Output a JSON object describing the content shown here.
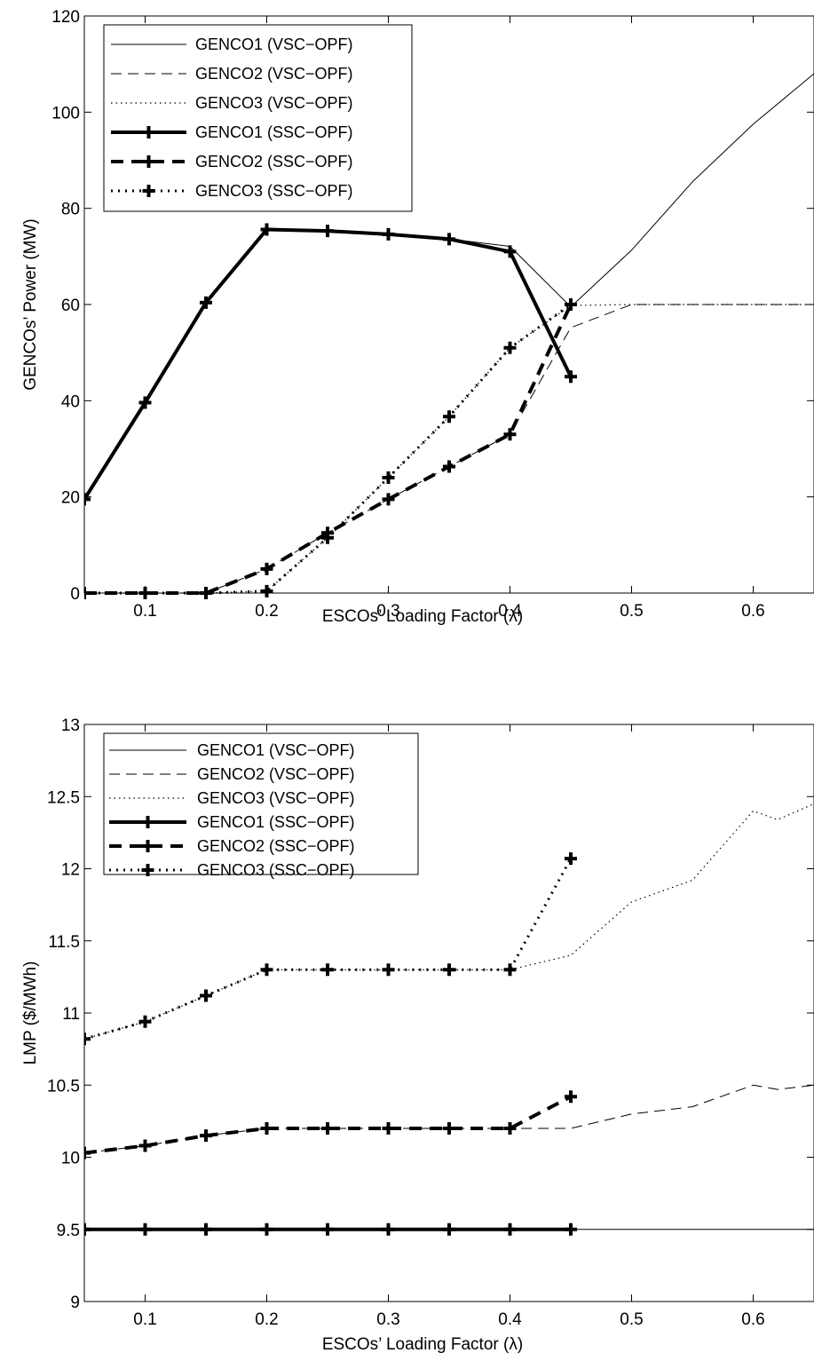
{
  "chart_data": [
    {
      "type": "line",
      "title": "",
      "xlabel": "ESCOs’ Loading Factor (λ)",
      "ylabel": "GENCOs’ Power (MW)",
      "xlim": [
        0.05,
        0.65
      ],
      "ylim": [
        0,
        120
      ],
      "xticks": [
        0.1,
        0.2,
        0.3,
        0.4,
        0.5,
        0.6
      ],
      "yticks": [
        0,
        20,
        40,
        60,
        80,
        100,
        120
      ],
      "xtick_labels": [
        "0.1",
        "0.2",
        "0.3",
        "0.4",
        "0.5",
        "0.6"
      ],
      "ytick_labels": [
        "0",
        "20",
        "40",
        "60",
        "80",
        "100",
        "120"
      ],
      "grid": false,
      "legend_position": "top-left",
      "series": [
        {
          "name": "GENCO1 (VSC−OPF)",
          "style": "thin-solid",
          "x": [
            0.05,
            0.1,
            0.15,
            0.2,
            0.25,
            0.3,
            0.35,
            0.4,
            0.45,
            0.5,
            0.55,
            0.6,
            0.65
          ],
          "y": [
            19.5,
            39.6,
            60.4,
            75.6,
            75.3,
            74.6,
            73.6,
            72.1,
            59.5,
            71.3,
            85.5,
            97.5,
            108
          ]
        },
        {
          "name": "GENCO2 (VSC−OPF)",
          "style": "thin-dashed",
          "x": [
            0.05,
            0.1,
            0.15,
            0.2,
            0.25,
            0.3,
            0.35,
            0.4,
            0.45,
            0.5,
            0.55,
            0.6,
            0.65
          ],
          "y": [
            0,
            0,
            0,
            5,
            12.5,
            19.5,
            26.3,
            33,
            55.2,
            60,
            60,
            60,
            60
          ]
        },
        {
          "name": "GENCO3 (VSC−OPF)",
          "style": "thin-dotted",
          "x": [
            0.05,
            0.1,
            0.15,
            0.2,
            0.25,
            0.3,
            0.35,
            0.4,
            0.45,
            0.5,
            0.55,
            0.6,
            0.65
          ],
          "y": [
            0,
            0,
            0,
            0.4,
            11.5,
            24,
            36.7,
            51,
            59.8,
            60,
            60,
            60,
            60
          ]
        },
        {
          "name": "GENCO1 (SSC−OPF)",
          "style": "thick-solid",
          "x": [
            0.05,
            0.1,
            0.15,
            0.2,
            0.25,
            0.3,
            0.35,
            0.4,
            0.45
          ],
          "y": [
            19.5,
            39.6,
            60.4,
            75.6,
            75.3,
            74.6,
            73.6,
            71,
            45
          ]
        },
        {
          "name": "GENCO2 (SSC−OPF)",
          "style": "thick-dashed",
          "x": [
            0.05,
            0.1,
            0.15,
            0.2,
            0.25,
            0.3,
            0.35,
            0.4,
            0.45
          ],
          "y": [
            0,
            0,
            0,
            5,
            12.5,
            19.5,
            26.3,
            33,
            60
          ]
        },
        {
          "name": "GENCO3 (SSC−OPF)",
          "style": "thick-dotted",
          "x": [
            0.05,
            0.1,
            0.15,
            0.2,
            0.25,
            0.3,
            0.35,
            0.4,
            0.45
          ],
          "y": [
            0,
            0,
            0,
            0.4,
            11.5,
            24,
            36.7,
            51,
            60
          ]
        }
      ]
    },
    {
      "type": "line",
      "title": "",
      "xlabel": "ESCOs’ Loading Factor (λ)",
      "ylabel": "LMP ($/MWh)",
      "xlim": [
        0.05,
        0.65
      ],
      "ylim": [
        9,
        13
      ],
      "xticks": [
        0.1,
        0.2,
        0.3,
        0.4,
        0.5,
        0.6
      ],
      "yticks": [
        9,
        9.5,
        10,
        10.5,
        11,
        11.5,
        12,
        12.5,
        13
      ],
      "xtick_labels": [
        "0.1",
        "0.2",
        "0.3",
        "0.4",
        "0.5",
        "0.6"
      ],
      "ytick_labels": [
        "9",
        "9.5",
        "10",
        "10.5",
        "11",
        "11.5",
        "12",
        "12.5",
        "13"
      ],
      "grid": false,
      "legend_position": "top-left",
      "series": [
        {
          "name": "GENCO1 (VSC−OPF)",
          "style": "thin-solid",
          "x": [
            0.05,
            0.1,
            0.15,
            0.2,
            0.25,
            0.3,
            0.35,
            0.4,
            0.45,
            0.5,
            0.55,
            0.6,
            0.65
          ],
          "y": [
            9.5,
            9.5,
            9.5,
            9.5,
            9.5,
            9.5,
            9.5,
            9.5,
            9.5,
            9.5,
            9.5,
            9.5,
            9.5
          ]
        },
        {
          "name": "GENCO2 (VSC−OPF)",
          "style": "thin-dashed",
          "x": [
            0.05,
            0.1,
            0.15,
            0.2,
            0.25,
            0.3,
            0.35,
            0.4,
            0.45,
            0.5,
            0.55,
            0.6,
            0.62,
            0.65
          ],
          "y": [
            10.03,
            10.08,
            10.15,
            10.2,
            10.2,
            10.2,
            10.2,
            10.2,
            10.2,
            10.3,
            10.35,
            10.5,
            10.47,
            10.5
          ]
        },
        {
          "name": "GENCO3 (VSC−OPF)",
          "style": "thin-dotted",
          "x": [
            0.05,
            0.1,
            0.15,
            0.2,
            0.25,
            0.3,
            0.35,
            0.4,
            0.45,
            0.5,
            0.55,
            0.6,
            0.62,
            0.65
          ],
          "y": [
            10.82,
            10.94,
            11.12,
            11.3,
            11.3,
            11.3,
            11.3,
            11.3,
            11.4,
            11.77,
            11.92,
            12.4,
            12.34,
            12.45
          ]
        },
        {
          "name": "GENCO1 (SSC−OPF)",
          "style": "thick-solid",
          "x": [
            0.05,
            0.1,
            0.15,
            0.2,
            0.25,
            0.3,
            0.35,
            0.4,
            0.45
          ],
          "y": [
            9.5,
            9.5,
            9.5,
            9.5,
            9.5,
            9.5,
            9.5,
            9.5,
            9.5
          ]
        },
        {
          "name": "GENCO2 (SSC−OPF)",
          "style": "thick-dashed",
          "x": [
            0.05,
            0.1,
            0.15,
            0.2,
            0.25,
            0.3,
            0.35,
            0.4,
            0.45
          ],
          "y": [
            10.03,
            10.08,
            10.15,
            10.2,
            10.2,
            10.2,
            10.2,
            10.2,
            10.42
          ]
        },
        {
          "name": "GENCO3 (SSC−OPF)",
          "style": "thick-dotted",
          "x": [
            0.05,
            0.1,
            0.15,
            0.2,
            0.25,
            0.3,
            0.35,
            0.4,
            0.45
          ],
          "y": [
            10.82,
            10.94,
            11.12,
            11.3,
            11.3,
            11.3,
            11.3,
            11.3,
            12.07
          ]
        }
      ]
    }
  ]
}
